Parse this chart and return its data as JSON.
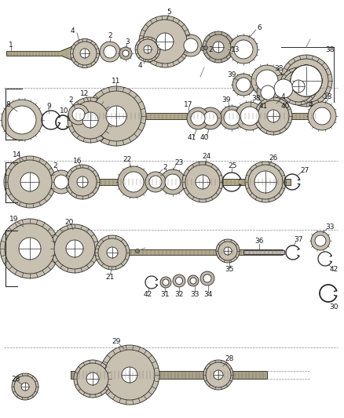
{
  "bg_color": "#ffffff",
  "lc": "#2a2a2a",
  "gc": "#c8c0b0",
  "gc2": "#d8d0c0",
  "sc": "#b0a890",
  "figsize": [
    4.38,
    5.33
  ],
  "dpi": 100,
  "lfs": 6.5
}
